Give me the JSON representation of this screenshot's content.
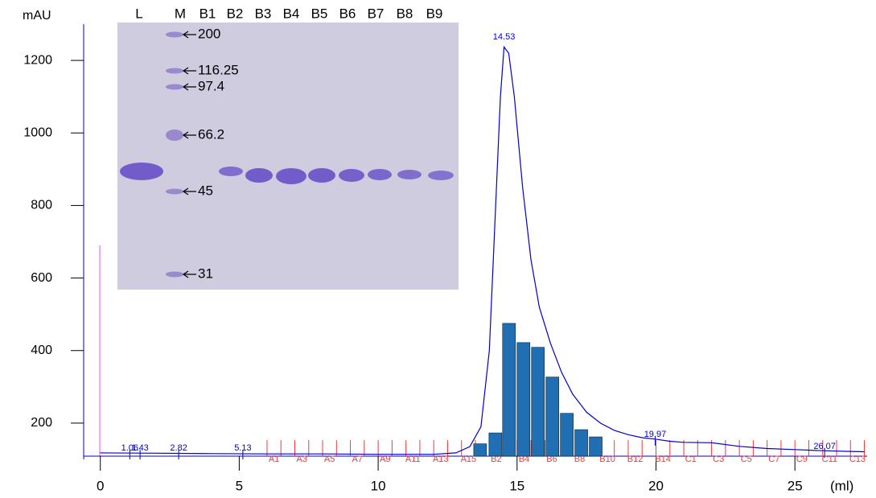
{
  "chart_data": {
    "type": "line",
    "y_label": "mAU",
    "x_label": "(ml)",
    "xlim": [
      -0.6,
      27.6
    ],
    "ylim": [
      100,
      1300
    ],
    "xticks": [
      0,
      5,
      10,
      15,
      20,
      25
    ],
    "yticks": [
      200,
      400,
      600,
      800,
      1000,
      1200
    ],
    "series": [
      {
        "type": "line",
        "color": "#0000cc",
        "x": [
          0,
          2,
          4,
          6,
          8,
          10,
          12,
          12.8,
          13.3,
          13.7,
          14.0,
          14.2,
          14.4,
          14.53,
          14.7,
          14.9,
          15.2,
          15.5,
          15.8,
          16.2,
          16.6,
          17,
          17.5,
          18,
          18.5,
          19,
          19.5,
          19.97,
          20.5,
          21,
          22,
          23,
          24,
          25,
          26,
          27,
          27.5
        ],
        "values": [
          118,
          117,
          116,
          115,
          115,
          114,
          114,
          118,
          135,
          190,
          400,
          750,
          1100,
          1237,
          1220,
          1100,
          850,
          650,
          520,
          420,
          340,
          280,
          230,
          200,
          180,
          168,
          160,
          156,
          150,
          147,
          146,
          136,
          130,
          127,
          124,
          122,
          121
        ]
      },
      {
        "type": "bar",
        "color": "#1f6fb2",
        "x": [
          13.67,
          14.22,
          14.71,
          15.23,
          15.75,
          16.27,
          16.79,
          17.31,
          17.83
        ],
        "values": [
          143,
          173,
          475,
          422,
          409,
          327,
          227,
          182,
          162
        ]
      }
    ],
    "peak_labels": [
      1.43,
      1.06,
      2.82,
      5.13,
      14.53,
      19.97,
      26.07
    ],
    "fraction_color": "#ff3333",
    "fractions": [
      6.0,
      6.5,
      7.0,
      7.5,
      8.0,
      8.5,
      9.0,
      9.5,
      10.0,
      10.5,
      11.0,
      11.5,
      12.0,
      12.5,
      13.0,
      13.5,
      14.0,
      14.5,
      15.0,
      15.5,
      16.0,
      16.5,
      17.0,
      17.5,
      18.0,
      18.5,
      19.0,
      19.5,
      20.0,
      20.5,
      21.0,
      21.5,
      22.0,
      22.5,
      23.0,
      23.5,
      24.0,
      24.5,
      25.0,
      25.5,
      26.0,
      26.5,
      27.0,
      27.5
    ],
    "fraction_labels": [
      "A1",
      "A3",
      "A5",
      "A7",
      "A9",
      "A11",
      "A13",
      "A15",
      "B2",
      "B4",
      "B6",
      "B8",
      "B10",
      "B12",
      "B14",
      "C1",
      "C3",
      "C5",
      "C7",
      "C9",
      "C11",
      "C13"
    ],
    "gel": {
      "lanes": [
        "L",
        "M",
        "B1",
        "B2",
        "B3",
        "B4",
        "B5",
        "B6",
        "B7",
        "B8",
        "B9"
      ],
      "markers": [
        "200",
        "116.25",
        "97.4",
        "66.2",
        "45",
        "31"
      ]
    }
  }
}
